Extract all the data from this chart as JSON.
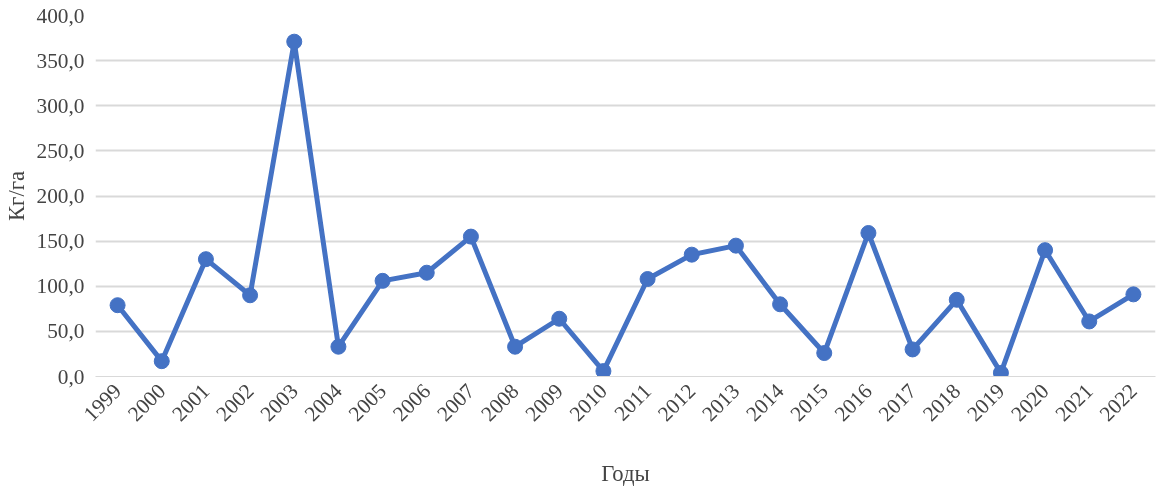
{
  "chart_data": {
    "type": "line",
    "xlabel": "Годы",
    "ylabel": "Кг/га",
    "categories": [
      "1999",
      "2000",
      "2001",
      "2002",
      "2003",
      "2004",
      "2005",
      "2006",
      "2007",
      "2008",
      "2009",
      "2010",
      "2011",
      "2012",
      "2013",
      "2014",
      "2015",
      "2016",
      "2017",
      "2018",
      "2019",
      "2020",
      "2021",
      "2022"
    ],
    "series": [
      {
        "color": "#4472c4",
        "values": [
          79,
          17,
          130,
          90,
          371,
          33,
          106,
          115,
          155,
          33,
          64,
          6,
          108,
          135,
          145,
          80,
          26,
          159,
          30,
          85,
          4,
          140,
          61,
          91
        ]
      }
    ],
    "ylim": [
      0,
      400
    ],
    "yticks": [
      {
        "value": 0,
        "label": "0,0"
      },
      {
        "value": 50,
        "label": "50,0"
      },
      {
        "value": 100,
        "label": "100,0"
      },
      {
        "value": 150,
        "label": "150,0"
      },
      {
        "value": 200,
        "label": "200,0"
      },
      {
        "value": 250,
        "label": "250,0"
      },
      {
        "value": 300,
        "label": "300,0"
      },
      {
        "value": 350,
        "label": "350,0"
      },
      {
        "value": 400,
        "label": "400,0"
      }
    ],
    "grid": "y",
    "marker": "circle",
    "line_style": "solid"
  }
}
